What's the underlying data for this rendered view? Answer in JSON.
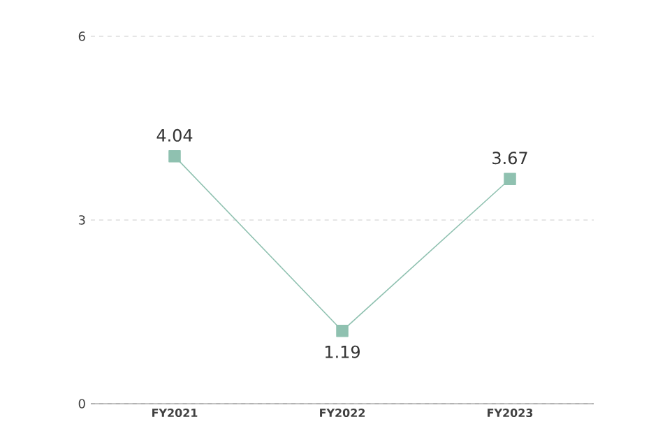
{
  "chart_data": {
    "type": "line",
    "categories": [
      "FY2021",
      "FY2022",
      "FY2023"
    ],
    "values": [
      4.04,
      1.19,
      3.67
    ],
    "color": "#8fc1b0",
    "ylim": [
      0,
      6
    ],
    "yticks": [
      0,
      3,
      6
    ],
    "grid": "y",
    "marker": "square",
    "line_style": "solid",
    "data_labels": true
  }
}
